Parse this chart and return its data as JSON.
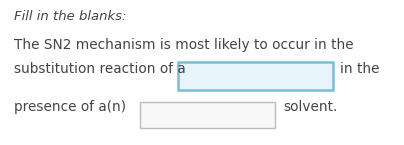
{
  "background_color": "#ffffff",
  "title_text": "Fill in the blanks:",
  "line1": "The SN2 mechanism is most likely to occur in the",
  "line2_before": "substitution reaction of a",
  "line2_after": "in the",
  "line3_before": "presence of a(n)",
  "line3_after": "solvent.",
  "box1_edgecolor": "#7abcd4",
  "box1_facecolor": "#e8f4fb",
  "box2_edgecolor": "#bbbbbb",
  "box2_facecolor": "#f8f8f8",
  "text_color": "#444444",
  "font_size": 9.8,
  "title_font_size": 9.5
}
